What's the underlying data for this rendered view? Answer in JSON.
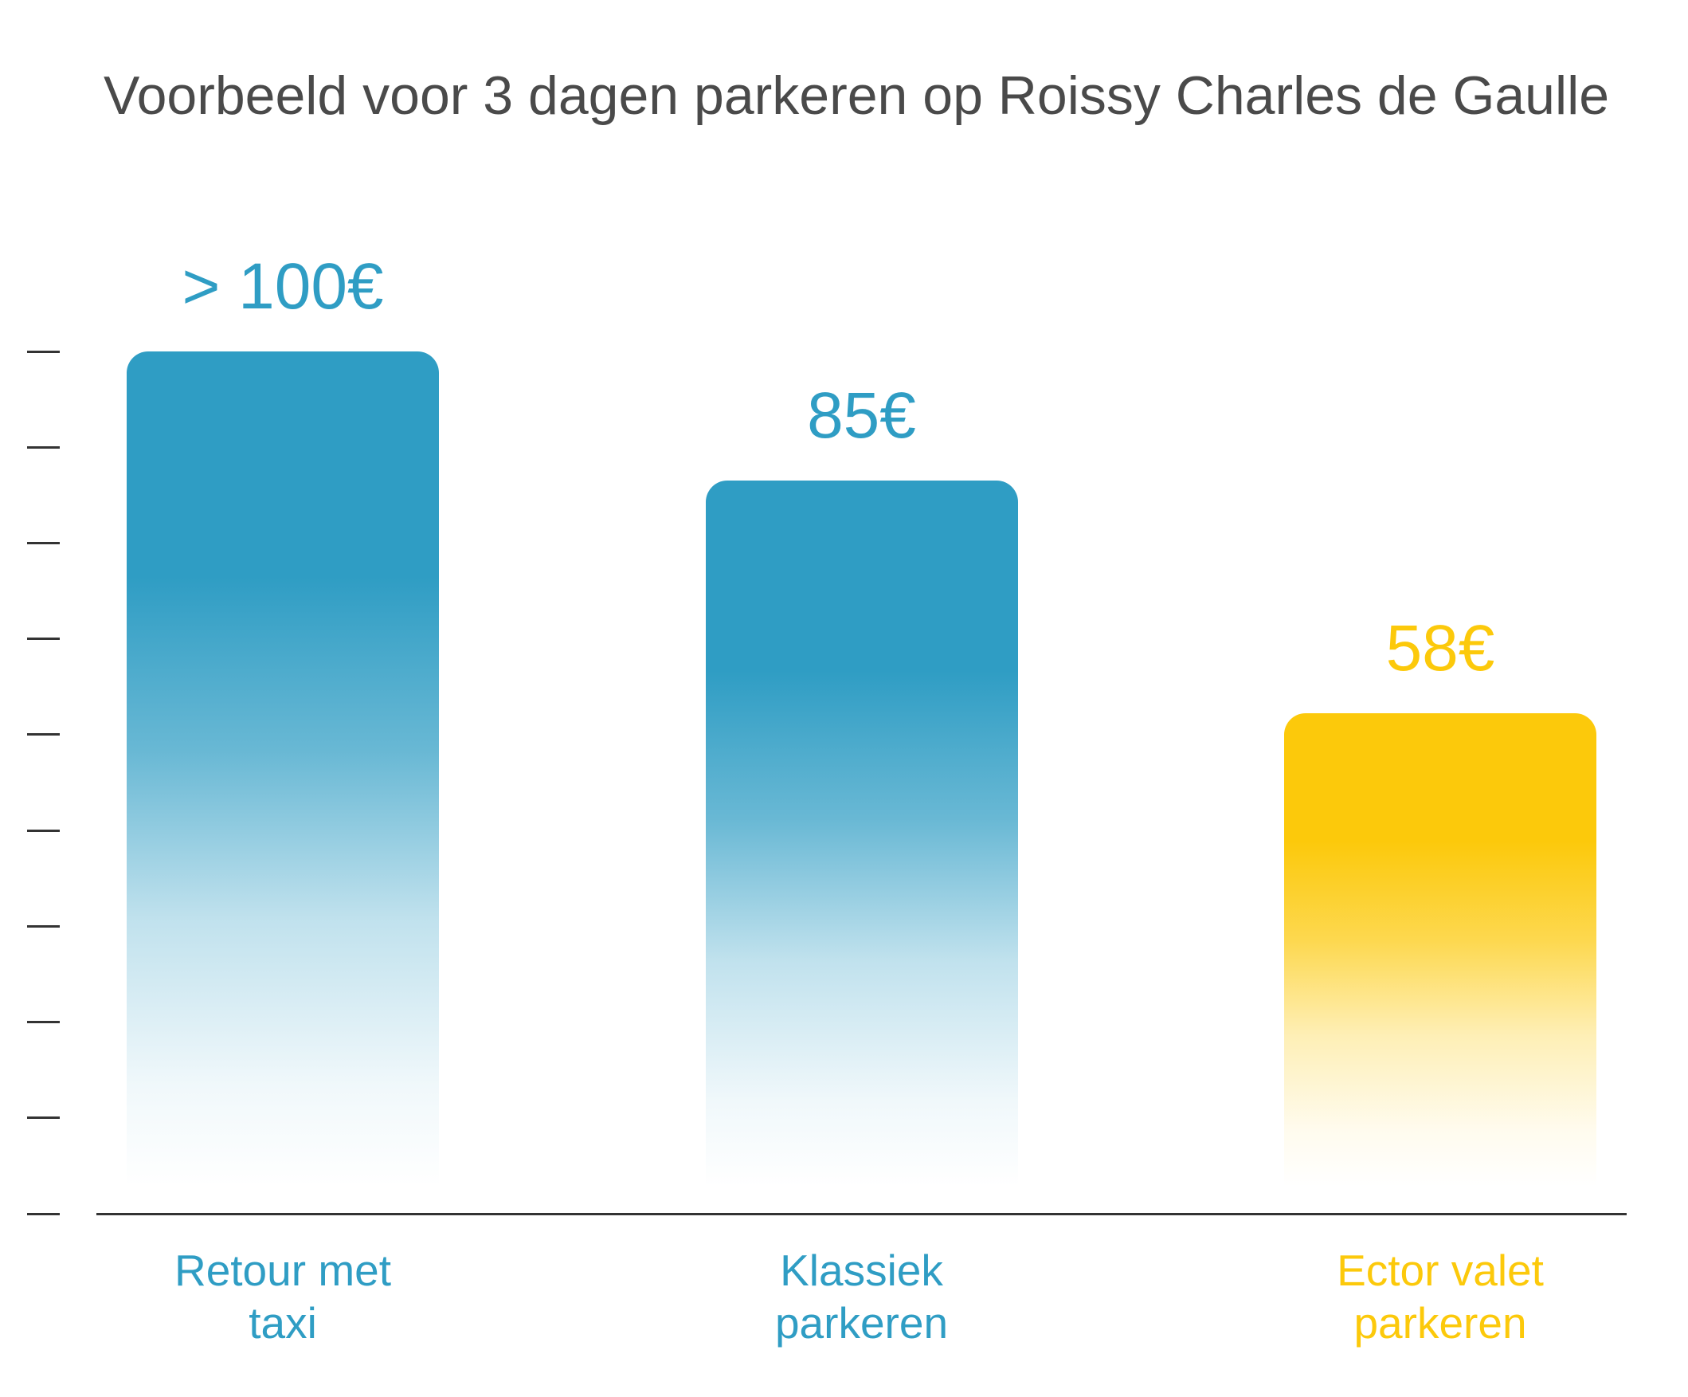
{
  "chart_data": {
    "type": "bar",
    "title": "Voorbeeld voor 3 dagen parkeren op Roissy Charles de Gaulle",
    "categories": [
      "Retour met taxi",
      "Klassiek parkeren",
      "Ector valet parkeren"
    ],
    "values": [
      100,
      85,
      58
    ],
    "value_labels": [
      "> 100€",
      "85€",
      "58€"
    ],
    "colors": [
      "#2f9dc4",
      "#2f9dc4",
      "#fcc90b"
    ],
    "ylim": [
      0,
      100
    ],
    "grid": false
  },
  "style": {
    "title_color": "#4a4a4a",
    "axis_color": "#333333",
    "background": "#ffffff"
  }
}
